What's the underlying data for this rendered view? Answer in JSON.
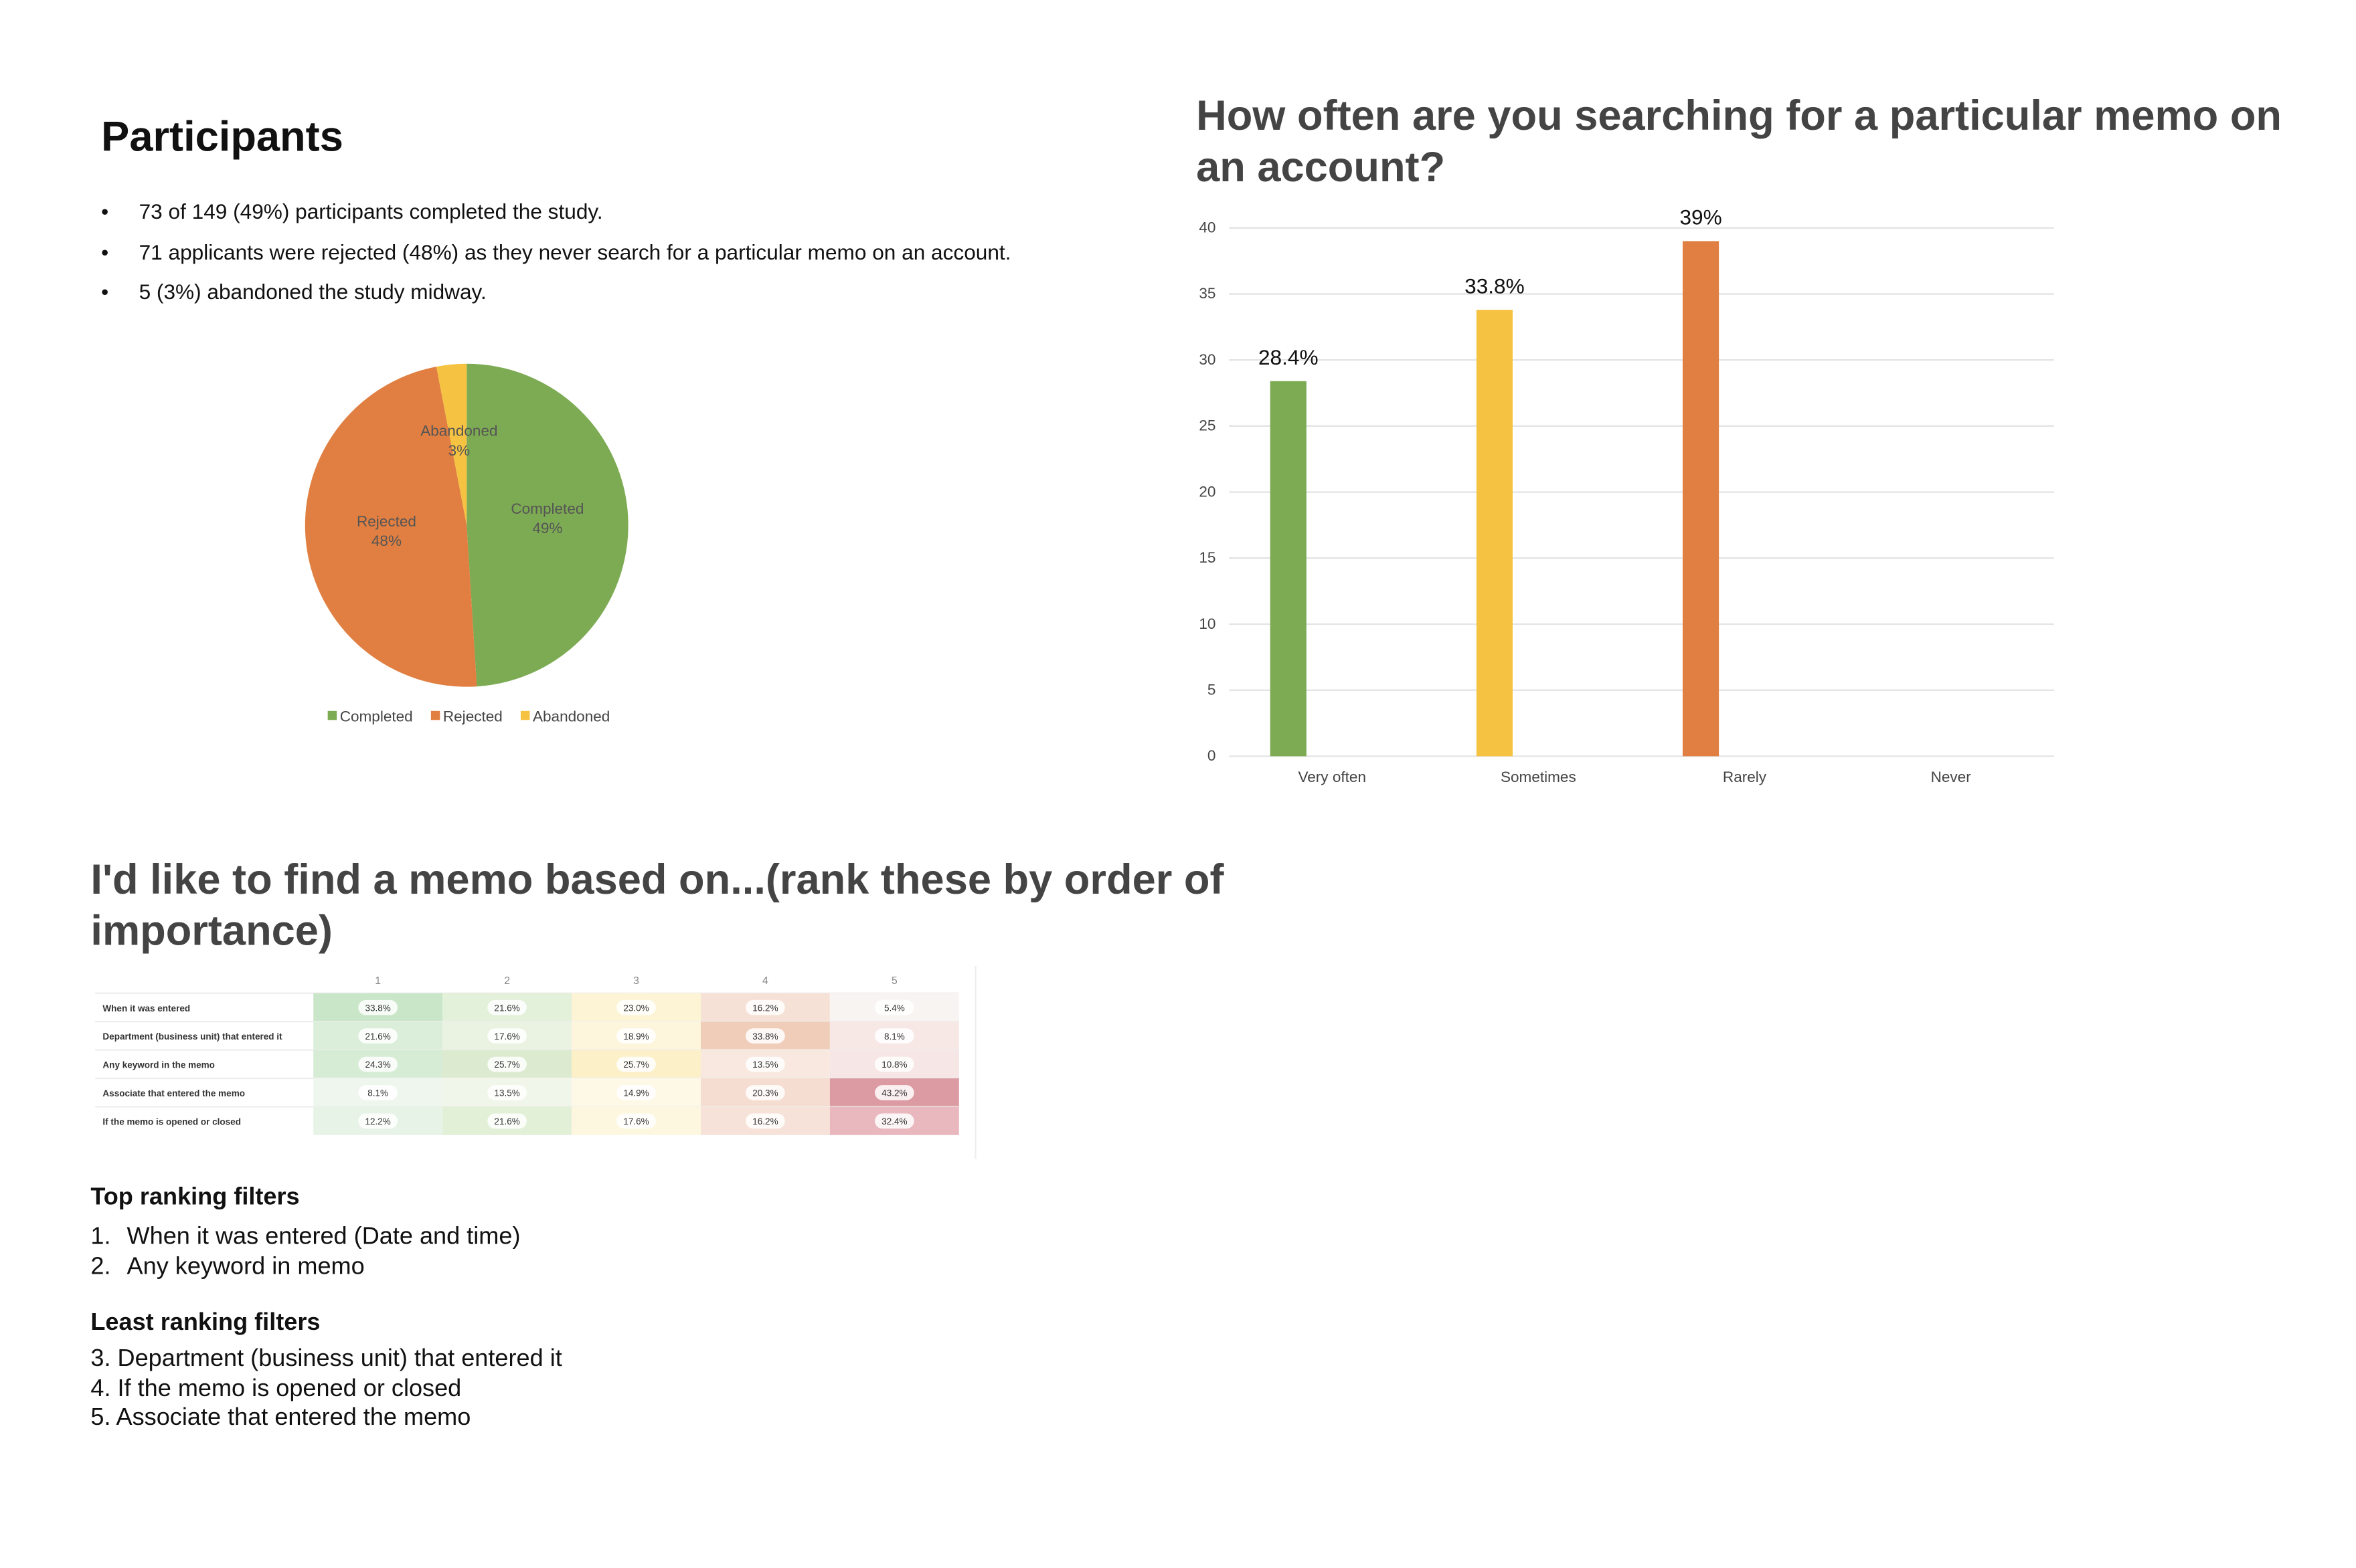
{
  "participants": {
    "title": "Participants",
    "items": [
      "73 of 149 (49%) participants completed the study.",
      "71 applicants were rejected (48%) as they never search for a particular memo on an account.",
      "5 (3%) abandoned the study midway."
    ]
  },
  "chart_data": [
    {
      "type": "pie",
      "categories": [
        "Completed",
        "Rejected",
        "Abandoned"
      ],
      "values": [
        49,
        48,
        3
      ],
      "value_labels": [
        "49%",
        "48%",
        "3%"
      ],
      "colors": [
        "#7dab53",
        "#e07f41",
        "#f5c242"
      ],
      "legend": "bottom"
    },
    {
      "type": "bar",
      "title": "How often are you searching for a particular memo on an account?",
      "categories": [
        "Very often",
        "Sometimes",
        "Rarely",
        "Never"
      ],
      "values": [
        28.4,
        33.8,
        39,
        0
      ],
      "value_labels": [
        "28.4%",
        "33.8%",
        "39%",
        null
      ],
      "colors": [
        "#7dab53",
        "#f5c242",
        "#e07f41",
        "#999999"
      ],
      "ylim": [
        0,
        40
      ],
      "yticks": [
        0,
        5,
        10,
        15,
        20,
        25,
        30,
        35,
        40
      ],
      "grid": true
    }
  ],
  "ranking": {
    "title": "I'd like to find a memo based on...(rank these by order of importance)",
    "table": {
      "header": [
        "1",
        "2",
        "3",
        "4",
        "5"
      ],
      "rows": [
        {
          "label": "When it was entered",
          "cells": [
            "33.8%",
            "21.6%",
            "23.0%",
            "16.2%",
            "5.4%"
          ]
        },
        {
          "label": "Department (business unit) that entered it",
          "cells": [
            "21.6%",
            "17.6%",
            "18.9%",
            "33.8%",
            "8.1%"
          ]
        },
        {
          "label": "Any keyword in the memo",
          "cells": [
            "24.3%",
            "25.7%",
            "25.7%",
            "13.5%",
            "10.8%"
          ]
        },
        {
          "label": "Associate that entered the memo",
          "cells": [
            "8.1%",
            "13.5%",
            "14.9%",
            "20.3%",
            "43.2%"
          ]
        },
        {
          "label": "If the memo is opened or closed",
          "cells": [
            "12.2%",
            "21.6%",
            "17.6%",
            "16.2%",
            "32.4%"
          ]
        }
      ]
    },
    "top_title": "Top ranking filters",
    "top_items": [
      {
        "number": "1.",
        "text": "When it was entered (Date and time)"
      },
      {
        "number": "2.",
        "text": "Any keyword in memo"
      }
    ],
    "least_title": "Least ranking filters",
    "least_items": [
      "3. Department (business unit) that entered it",
      "4. If the memo is opened or closed",
      "5. Associate that entered the memo"
    ]
  }
}
